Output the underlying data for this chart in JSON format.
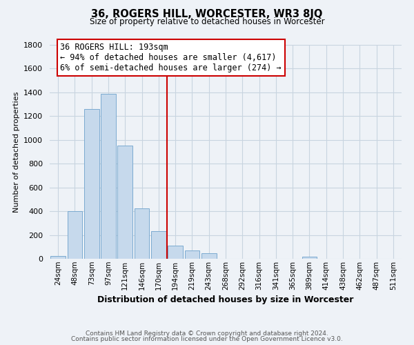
{
  "title": "36, ROGERS HILL, WORCESTER, WR3 8JQ",
  "subtitle": "Size of property relative to detached houses in Worcester",
  "xlabel": "Distribution of detached houses by size in Worcester",
  "ylabel": "Number of detached properties",
  "bar_labels": [
    "24sqm",
    "48sqm",
    "73sqm",
    "97sqm",
    "121sqm",
    "146sqm",
    "170sqm",
    "194sqm",
    "219sqm",
    "243sqm",
    "268sqm",
    "292sqm",
    "316sqm",
    "341sqm",
    "365sqm",
    "389sqm",
    "414sqm",
    "438sqm",
    "462sqm",
    "487sqm",
    "511sqm"
  ],
  "bar_values": [
    25,
    400,
    1260,
    1390,
    950,
    425,
    235,
    110,
    70,
    45,
    0,
    0,
    0,
    0,
    0,
    15,
    0,
    0,
    0,
    0,
    0
  ],
  "bar_color": "#c6d9ec",
  "bar_edgecolor": "#7baad0",
  "vline_index": 7,
  "vline_color": "#cc0000",
  "annotation_line1": "36 ROGERS HILL: 193sqm",
  "annotation_line2": "← 94% of detached houses are smaller (4,617)",
  "annotation_line3": "6% of semi-detached houses are larger (274) →",
  "annotation_box_color": "#cc0000",
  "ylim": [
    0,
    1800
  ],
  "yticks": [
    0,
    200,
    400,
    600,
    800,
    1000,
    1200,
    1400,
    1600,
    1800
  ],
  "grid_color": "#c8d4e0",
  "background_color": "#eef2f7",
  "footnote1": "Contains HM Land Registry data © Crown copyright and database right 2024.",
  "footnote2": "Contains public sector information licensed under the Open Government Licence v3.0."
}
